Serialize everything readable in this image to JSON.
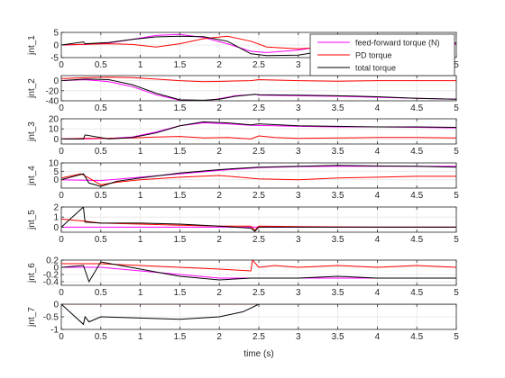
{
  "colors": {
    "feedforward": "#ff00ff",
    "pd": "#ff0000",
    "total": "#000000",
    "axis": "#262626",
    "grid": "#e6e6e6"
  },
  "legend": {
    "placement": "top-right of first subplot",
    "entries": [
      "feed-forward torque (N)",
      "PD torque",
      "total torque"
    ]
  },
  "xlabel": "time (s)",
  "chart_data": [
    {
      "type": "line",
      "ylabel": "jnt_1",
      "xlim": [
        0,
        5
      ],
      "ylim": [
        -5,
        5
      ],
      "xticks": [
        0,
        0.5,
        1,
        1.5,
        2,
        2.5,
        3,
        3.5,
        4,
        4.5,
        5
      ],
      "yticks": [
        -5,
        0,
        5
      ],
      "grid": true,
      "series": [
        {
          "name": "feed-forward torque (N)",
          "color": "#ff00ff",
          "x": [
            0,
            0.3,
            0.6,
            0.9,
            1.2,
            1.5,
            1.8,
            2.1,
            2.4,
            2.6,
            3.0,
            3.5,
            4.0,
            4.5,
            5.0
          ],
          "y": [
            0,
            0.2,
            0.8,
            2.2,
            3.8,
            4.2,
            3.0,
            0.5,
            -2.5,
            -3.0,
            -2.0,
            0.5,
            1.5,
            0.5,
            0.2
          ]
        },
        {
          "name": "PD torque",
          "color": "#ff0000",
          "x": [
            0,
            0.3,
            0.6,
            0.9,
            1.2,
            1.5,
            1.8,
            2.1,
            2.4,
            2.6,
            3.0,
            3.5,
            4.0,
            4.5,
            5.0
          ],
          "y": [
            0,
            0.3,
            0.5,
            0.2,
            -0.8,
            0.5,
            2.5,
            3.5,
            1.5,
            -0.8,
            -1.5,
            -0.5,
            1.0,
            1.2,
            0.6
          ]
        },
        {
          "name": "total torque",
          "color": "#000000",
          "x": [
            0,
            0.28,
            0.3,
            0.6,
            0.9,
            1.2,
            1.5,
            1.8,
            2.1,
            2.4,
            2.6,
            3.0,
            3.5,
            4.0,
            4.5,
            5.0
          ],
          "y": [
            0,
            1.2,
            0.5,
            1.0,
            2.2,
            3.2,
            3.5,
            3.3,
            1.5,
            -3.5,
            -4.2,
            -4.0,
            -1.5,
            1.8,
            1.5,
            0.8
          ]
        }
      ]
    },
    {
      "type": "line",
      "ylabel": "jnt_2",
      "xlim": [
        0,
        5
      ],
      "ylim": [
        -40,
        10
      ],
      "xticks": [
        0,
        0.5,
        1,
        1.5,
        2,
        2.5,
        3,
        3.5,
        4,
        4.5,
        5
      ],
      "yticks": [
        -40,
        -20,
        0
      ],
      "grid": true,
      "series": [
        {
          "name": "feed-forward torque (N)",
          "color": "#ff00ff",
          "x": [
            0,
            0.3,
            0.6,
            0.9,
            1.2,
            1.5,
            1.8,
            2.0,
            2.2,
            2.4,
            2.45,
            2.5,
            3.0,
            3.5,
            4.0,
            4.5,
            5.0
          ],
          "y": [
            0,
            2,
            -2,
            -12,
            -28,
            -39,
            -40,
            -36,
            -30,
            -28,
            -27,
            -29,
            -30,
            -31,
            -33,
            -35,
            -37
          ]
        },
        {
          "name": "PD torque",
          "color": "#ff0000",
          "x": [
            0,
            0.3,
            0.6,
            0.9,
            1.2,
            1.5,
            1.8,
            2.1,
            2.4,
            2.5,
            3.0,
            3.5,
            4.0,
            4.5,
            5.0
          ],
          "y": [
            4,
            6,
            7,
            6,
            3,
            0,
            -2,
            -1,
            0,
            2,
            0,
            -1,
            0,
            0,
            0
          ]
        },
        {
          "name": "total torque",
          "color": "#000000",
          "x": [
            0,
            0.3,
            0.6,
            0.9,
            1.2,
            1.5,
            1.8,
            2.0,
            2.2,
            2.4,
            2.45,
            2.5,
            3.0,
            3.5,
            4.0,
            4.5,
            5.0
          ],
          "y": [
            0,
            3,
            2,
            -8,
            -25,
            -38,
            -39,
            -37,
            -31,
            -28,
            -27,
            -28,
            -29,
            -30,
            -32,
            -35,
            -37
          ]
        }
      ]
    },
    {
      "type": "line",
      "ylabel": "jnt_3",
      "xlim": [
        0,
        5
      ],
      "ylim": [
        -5,
        20
      ],
      "xticks": [
        0,
        0.5,
        1,
        1.5,
        2,
        2.5,
        3,
        3.5,
        4,
        4.5,
        5
      ],
      "yticks": [
        0,
        10,
        20
      ],
      "grid": true,
      "series": [
        {
          "name": "feed-forward torque (N)",
          "color": "#ff00ff",
          "x": [
            0,
            0.3,
            0.6,
            0.9,
            1.2,
            1.5,
            1.8,
            2.1,
            2.4,
            2.7,
            3.0,
            3.5,
            4.0,
            4.5,
            5.0
          ],
          "y": [
            0,
            0,
            0.5,
            2,
            7,
            13,
            16,
            15,
            13.5,
            13,
            12.5,
            12,
            12,
            11.5,
            11
          ]
        },
        {
          "name": "PD torque",
          "color": "#ff0000",
          "x": [
            0,
            0.3,
            0.6,
            0.9,
            1.2,
            1.5,
            1.8,
            2.1,
            2.4,
            2.5,
            2.7,
            3.0,
            3.5,
            4.0,
            4.5,
            5.0
          ],
          "y": [
            0,
            0.5,
            0.5,
            1,
            2,
            2.5,
            1,
            1.5,
            0,
            3,
            1.5,
            0.5,
            1,
            1.5,
            1.5,
            1
          ]
        },
        {
          "name": "total torque",
          "color": "#000000",
          "x": [
            0,
            0.28,
            0.3,
            0.6,
            0.9,
            1.2,
            1.5,
            1.8,
            2.1,
            2.4,
            2.5,
            3.0,
            3.5,
            4.0,
            4.5,
            5.0
          ],
          "y": [
            0,
            0,
            4,
            0,
            1.5,
            6,
            13,
            17,
            16,
            14,
            15,
            13,
            12.5,
            12,
            12,
            11.5
          ]
        }
      ]
    },
    {
      "type": "line",
      "ylabel": "jnt_4",
      "xlim": [
        0,
        5
      ],
      "ylim": [
        -5,
        10
      ],
      "xticks": [
        0,
        0.5,
        1,
        1.5,
        2,
        2.5,
        3,
        3.5,
        4,
        4.5,
        5
      ],
      "yticks": [
        0,
        5,
        10
      ],
      "grid": true,
      "series": [
        {
          "name": "feed-forward torque (N)",
          "color": "#ff00ff",
          "x": [
            0,
            0.5,
            1.0,
            1.5,
            2.0,
            2.5,
            3.0,
            3.5,
            4.0,
            4.5,
            5.0
          ],
          "y": [
            0,
            -0.5,
            1.5,
            3.5,
            5.5,
            7.2,
            7.8,
            8,
            8,
            8,
            8
          ]
        },
        {
          "name": "PD torque",
          "color": "#ff0000",
          "x": [
            0,
            0.25,
            0.35,
            0.5,
            0.7,
            1.0,
            1.5,
            2.0,
            2.5,
            3.0,
            3.5,
            4.0,
            4.5,
            5.0
          ],
          "y": [
            1,
            3.5,
            1,
            -3,
            -1.5,
            0,
            1.5,
            2.5,
            0.5,
            0,
            1,
            1.5,
            2,
            2
          ]
        },
        {
          "name": "total torque",
          "color": "#000000",
          "x": [
            0,
            0.28,
            0.35,
            0.5,
            0.7,
            1.0,
            1.5,
            2.0,
            2.5,
            3.0,
            3.5,
            4.0,
            4.5,
            5.0
          ],
          "y": [
            0,
            3.5,
            -2,
            -4,
            -1,
            1,
            4,
            6,
            7.5,
            8,
            8.5,
            8.2,
            8,
            7.5
          ]
        }
      ]
    },
    {
      "type": "line",
      "ylabel": "jnt_5",
      "xlim": [
        0,
        5
      ],
      "ylim": [
        -0.5,
        2
      ],
      "xticks": [
        0,
        0.5,
        1,
        1.5,
        2,
        2.5,
        3,
        3.5,
        4,
        4.5,
        5
      ],
      "yticks": [
        0,
        1,
        2
      ],
      "grid": true,
      "series": [
        {
          "name": "feed-forward torque (N)",
          "color": "#ff00ff",
          "x": [
            0,
            1.0,
            2.0,
            2.5,
            3.0,
            4.0,
            5.0
          ],
          "y": [
            0,
            0,
            0,
            0,
            0,
            0,
            0
          ]
        },
        {
          "name": "PD torque",
          "color": "#ff0000",
          "x": [
            0,
            0.3,
            0.5,
            1.0,
            1.5,
            2.0,
            2.4,
            2.45,
            2.5,
            3.0,
            4.0,
            5.0
          ],
          "y": [
            0.8,
            0.6,
            0.4,
            0.3,
            0.2,
            0.1,
            0.1,
            -0.3,
            0.1,
            0.05,
            0,
            0
          ]
        },
        {
          "name": "total torque",
          "color": "#000000",
          "x": [
            0,
            0.28,
            0.3,
            0.5,
            1.0,
            1.5,
            2.0,
            2.4,
            2.45,
            2.5,
            3.0,
            4.0,
            5.0
          ],
          "y": [
            0,
            2,
            0.5,
            0.4,
            0.4,
            0.3,
            0.1,
            -0.1,
            -0.4,
            0,
            0,
            0,
            0
          ]
        }
      ]
    },
    {
      "type": "line",
      "ylabel": "jnt_6",
      "xlim": [
        0,
        5
      ],
      "ylim": [
        -0.5,
        0.2
      ],
      "xticks": [
        0,
        0.5,
        1,
        1.5,
        2,
        2.5,
        3,
        3.5,
        4,
        4.5,
        5
      ],
      "yticks": [
        -0.4,
        -0.2,
        0,
        0.2
      ],
      "grid": true,
      "series": [
        {
          "name": "feed-forward torque (N)",
          "color": "#ff00ff",
          "x": [
            0,
            0.5,
            1.0,
            1.5,
            2.0,
            2.5,
            3.0,
            3.5,
            4.0,
            4.5,
            5.0
          ],
          "y": [
            0,
            0,
            -0.1,
            -0.2,
            -0.3,
            -0.3,
            -0.3,
            -0.3,
            -0.3,
            -0.3,
            -0.3
          ]
        },
        {
          "name": "PD torque",
          "color": "#ff0000",
          "x": [
            0,
            0.3,
            0.5,
            1.0,
            1.5,
            2.0,
            2.4,
            2.42,
            2.5,
            2.7,
            3.0,
            3.5,
            4.0,
            4.5,
            5.0
          ],
          "y": [
            0.1,
            0.1,
            0.1,
            0.05,
            0,
            -0.05,
            -0.1,
            0.2,
            0,
            0.05,
            0,
            0.05,
            0,
            0.05,
            0
          ]
        },
        {
          "name": "total torque",
          "color": "#000000",
          "x": [
            0,
            0.28,
            0.35,
            0.5,
            1.0,
            1.5,
            2.0,
            2.4,
            2.5,
            3.0,
            3.5,
            4.0,
            4.5,
            5.0
          ],
          "y": [
            0,
            0.05,
            -0.4,
            0.15,
            -0.05,
            -0.25,
            -0.35,
            -0.3,
            -0.3,
            -0.3,
            -0.25,
            -0.3,
            -0.3,
            -0.3
          ]
        }
      ]
    },
    {
      "type": "line",
      "ylabel": "jnt_7",
      "xlim": [
        0,
        5
      ],
      "ylim": [
        -1,
        0
      ],
      "xticks": [
        0,
        0.5,
        1,
        1.5,
        2,
        2.5,
        3,
        3.5,
        4,
        4.5,
        5
      ],
      "yticks": [
        -1,
        -0.5,
        0
      ],
      "grid": true,
      "series": [
        {
          "name": "feed-forward torque (N)",
          "color": "#ff00ff",
          "x": [
            0,
            1.0,
            2.0,
            2.5,
            3.0,
            4.0,
            5.0
          ],
          "y": [
            0,
            0,
            0,
            0,
            0,
            0,
            0
          ]
        },
        {
          "name": "PD torque",
          "color": "#ff0000",
          "x": [
            0,
            1.0,
            2.0,
            2.5,
            3.0,
            4.0,
            5.0
          ],
          "y": [
            0,
            0,
            0,
            0,
            0,
            0,
            0
          ]
        },
        {
          "name": "total torque",
          "color": "#000000",
          "x": [
            0,
            0.28,
            0.3,
            0.35,
            0.5,
            1.0,
            1.5,
            2.0,
            2.3,
            2.5,
            3.0,
            4.0,
            5.0
          ],
          "y": [
            0,
            -0.8,
            -0.5,
            -0.7,
            -0.5,
            -0.55,
            -0.6,
            -0.5,
            -0.3,
            0,
            0,
            0,
            0
          ]
        }
      ]
    }
  ]
}
